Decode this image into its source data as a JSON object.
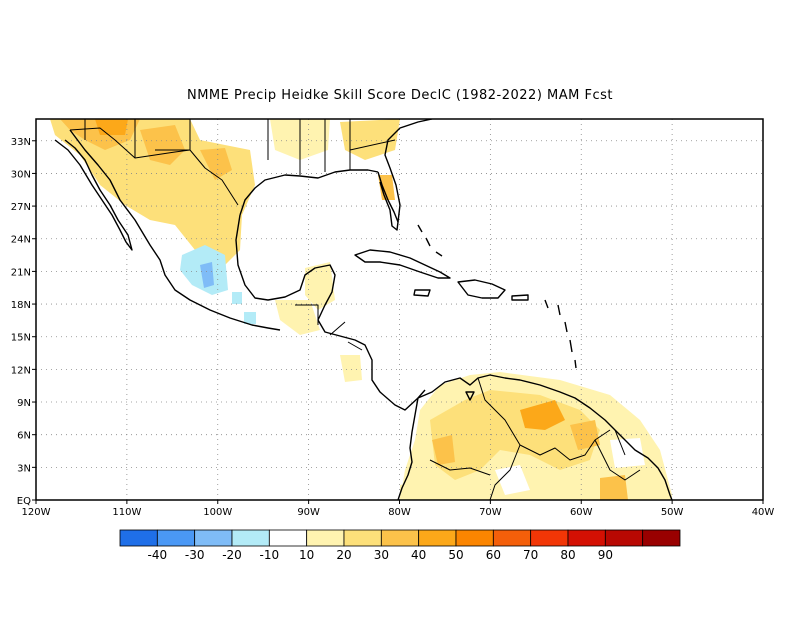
{
  "title": "NMME Precip Heidke Skill Score DeclC (1982-2022) MAM Fcst",
  "map": {
    "lon_range": [
      -120,
      -40
    ],
    "lat_range": [
      0,
      35
    ],
    "lon_ticks": [
      {
        "lon": -120,
        "label": "120W"
      },
      {
        "lon": -110,
        "label": "110W"
      },
      {
        "lon": -100,
        "label": "100W"
      },
      {
        "lon": -90,
        "label": "90W"
      },
      {
        "lon": -80,
        "label": "80W"
      },
      {
        "lon": -70,
        "label": "70W"
      },
      {
        "lon": -60,
        "label": "60W"
      },
      {
        "lon": -50,
        "label": "50W"
      },
      {
        "lon": -40,
        "label": "40W"
      }
    ],
    "lat_ticks": [
      {
        "lat": 0,
        "label": "EQ"
      },
      {
        "lat": 3,
        "label": "3N"
      },
      {
        "lat": 6,
        "label": "6N"
      },
      {
        "lat": 9,
        "label": "9N"
      },
      {
        "lat": 12,
        "label": "12N"
      },
      {
        "lat": 15,
        "label": "15N"
      },
      {
        "lat": 18,
        "label": "18N"
      },
      {
        "lat": 21,
        "label": "21N"
      },
      {
        "lat": 24,
        "label": "24N"
      },
      {
        "lat": 27,
        "label": "27N"
      },
      {
        "lat": 30,
        "label": "30N"
      },
      {
        "lat": 33,
        "label": "33N"
      }
    ],
    "grid": "dotted"
  },
  "colorbar": {
    "colors": [
      "#1f6fe8",
      "#4a98f5",
      "#7fbcf7",
      "#b3ebf7",
      "#ffffff",
      "#fff3b0",
      "#fde07a",
      "#fcc24a",
      "#fca819",
      "#fb8500",
      "#f45f0a",
      "#f23606",
      "#d41003",
      "#b80802",
      "#990000"
    ],
    "labels": [
      "-40",
      "-30",
      "-20",
      "-10",
      "10",
      "20",
      "30",
      "40",
      "50",
      "60",
      "70",
      "80",
      "90"
    ]
  }
}
